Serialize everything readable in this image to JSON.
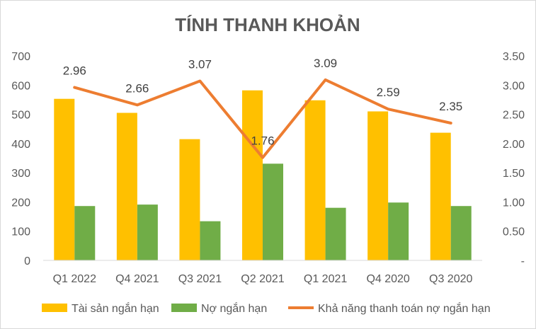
{
  "chart_data": {
    "type": "bar",
    "title": "TÍNH THANH KHOẢN",
    "categories": [
      "Q1 2022",
      "Q4 2021",
      "Q3 2021",
      "Q2 2021",
      "Q1 2021",
      "Q4 2020",
      "Q3 2020"
    ],
    "series": [
      {
        "name": "Tài sản ngắn hạn",
        "type": "bar",
        "axis": "left",
        "color": "#FFC000",
        "values": [
          553,
          505,
          415,
          582,
          548,
          510,
          437
        ]
      },
      {
        "name": "Nợ ngắn hạn",
        "type": "bar",
        "axis": "left",
        "color": "#70AD47",
        "values": [
          186,
          191,
          134,
          331,
          180,
          198,
          186
        ]
      },
      {
        "name": "Khả năng thanh toán nợ ngắn hạn",
        "type": "line",
        "axis": "right",
        "color": "#ED7D31",
        "values": [
          2.96,
          2.66,
          3.07,
          1.76,
          3.09,
          2.59,
          2.35
        ],
        "labels": [
          "2.96",
          "2.66",
          "3.07",
          "1.76",
          "3.09",
          "2.59",
          "2.35"
        ]
      }
    ],
    "y_left": {
      "min": 0,
      "max": 700,
      "ticks": [
        "0",
        "100",
        "200",
        "300",
        "400",
        "500",
        "600",
        "700"
      ]
    },
    "y_right": {
      "min": 0,
      "max": 3.5,
      "ticks": [
        "-",
        "0.50",
        "1.00",
        "1.50",
        "2.00",
        "2.50",
        "3.00",
        "3.50"
      ]
    },
    "grid": false,
    "legend_position": "bottom"
  }
}
